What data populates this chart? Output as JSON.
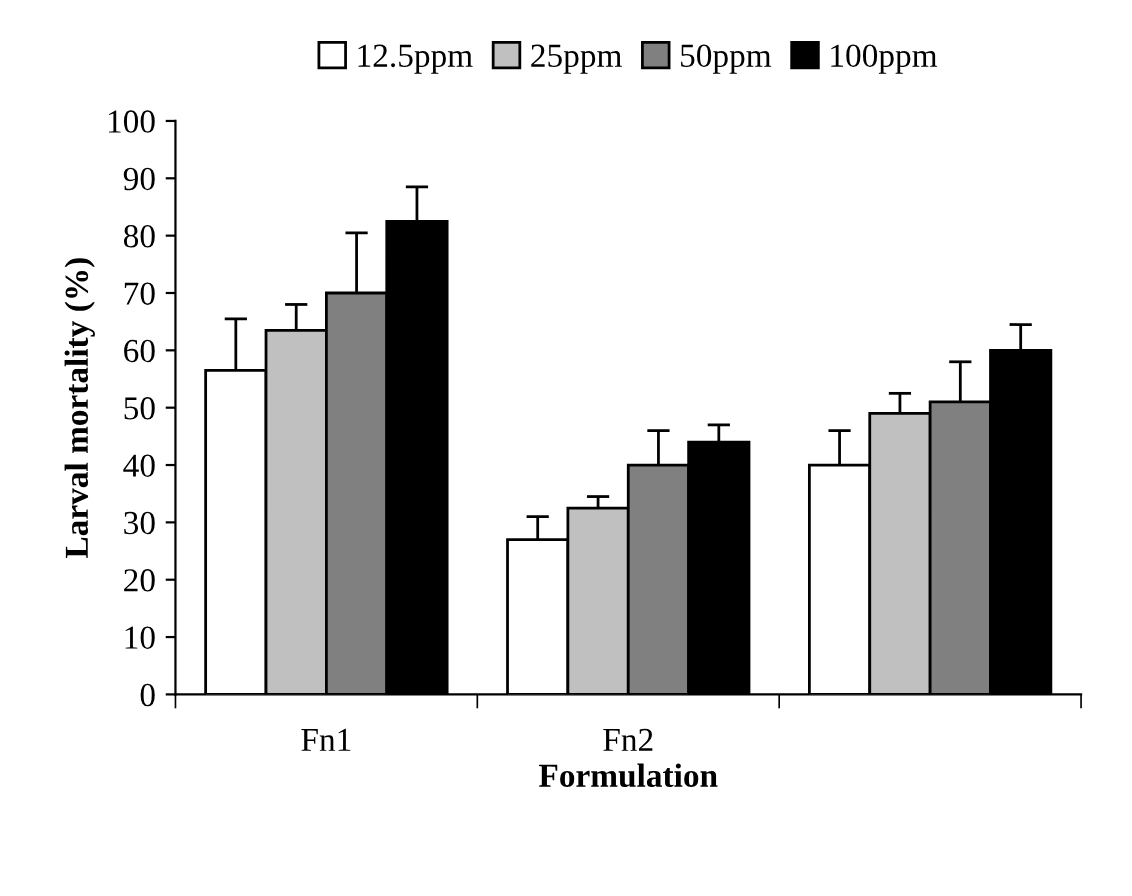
{
  "chart_data": {
    "type": "bar",
    "xlabel": "Formulation",
    "ylabel": "Larval mortality (%)",
    "categories": [
      "Fn1",
      "Fn2",
      null
    ],
    "series": [
      {
        "name": "12.5ppm",
        "color": "#ffffff",
        "values": [
          56.5,
          27,
          40
        ],
        "errors": [
          9,
          4,
          6
        ]
      },
      {
        "name": "25ppm",
        "color": "#c0c0c0",
        "values": [
          63.5,
          32.5,
          49
        ],
        "errors": [
          4.5,
          2,
          3.5
        ]
      },
      {
        "name": "50ppm",
        "color": "#808080",
        "values": [
          70,
          40,
          51
        ],
        "errors": [
          10.5,
          6,
          7
        ]
      },
      {
        "name": "100ppm",
        "color": "#000000",
        "values": [
          82.5,
          44,
          60
        ],
        "errors": [
          6,
          3,
          4.5
        ]
      }
    ],
    "ylim": [
      0,
      100
    ],
    "yticks": [
      0,
      10,
      20,
      30,
      40,
      50,
      60,
      70,
      80,
      90,
      100
    ],
    "grid": false,
    "legend": "top"
  }
}
